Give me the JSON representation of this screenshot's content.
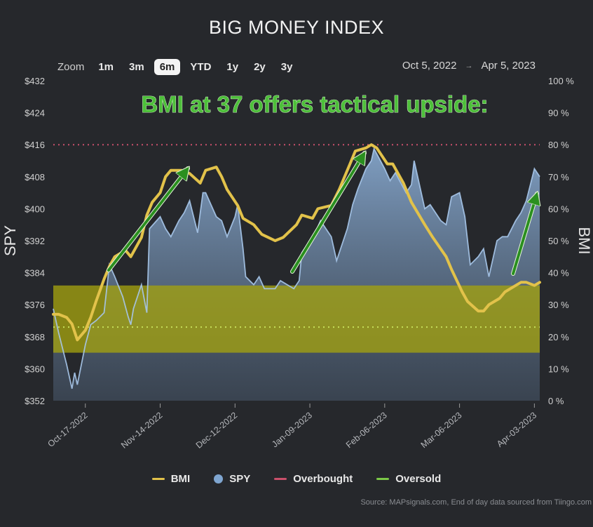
{
  "title": "BIG MONEY INDEX",
  "zoom": {
    "label": "Zoom",
    "buttons": [
      "1m",
      "3m",
      "6m",
      "YTD",
      "1y",
      "2y",
      "3y"
    ],
    "active": "6m"
  },
  "range": {
    "from": "Oct 5, 2022",
    "arrow": "→",
    "to": "Apr 5, 2023"
  },
  "colors": {
    "background": "#26282c",
    "bmi": "#e2c24a",
    "spy": "#7fa6d1",
    "overbought": "#c9506b",
    "oversold": "#7bc847",
    "oversold_zone": "#a3a20f",
    "annotation": "#4dbf3a",
    "arrow": "#2a8f1f"
  },
  "annotation": "BMI at 37 offers tactical upside:",
  "legend": [
    "BMI",
    "SPY",
    "Overbought",
    "Oversold"
  ],
  "source": "Source: MAPsignals.com, End of day data sourced from Tiingo.com",
  "chart_data": {
    "type": "line",
    "x_tick_labels": [
      "Oct-17-2022",
      "Nov-14-2022",
      "Dec-12-2022",
      "Jan-09-2023",
      "Feb-06-2023",
      "Mar-06-2023",
      "Apr-03-2023"
    ],
    "y_left": {
      "label": "SPY",
      "ticks": [
        "$432",
        "$424",
        "$416",
        "$408",
        "$400",
        "$392",
        "$384",
        "$376",
        "$368",
        "$360",
        "$352"
      ],
      "range": [
        352,
        432
      ]
    },
    "y_right": {
      "label": "BMI",
      "ticks": [
        "100 %",
        "90 %",
        "80 %",
        "70 %",
        "60 %",
        "50 %",
        "40 %",
        "30 %",
        "20 %",
        "10 %",
        "0 %"
      ],
      "range": [
        0,
        100
      ]
    },
    "overbought_level": 80,
    "oversold_level": 23,
    "oversold_zone": [
      15,
      36
    ],
    "x_range": [
      "2022-10-05",
      "2023-04-05"
    ],
    "series": [
      {
        "name": "SPY",
        "x": [
          "2022-10-05",
          "2022-10-07",
          "2022-10-10",
          "2022-10-12",
          "2022-10-13",
          "2022-10-14",
          "2022-10-17",
          "2022-10-19",
          "2022-10-21",
          "2022-10-24",
          "2022-10-26",
          "2022-10-28",
          "2022-10-31",
          "2022-11-02",
          "2022-11-03",
          "2022-11-04",
          "2022-11-07",
          "2022-11-09",
          "2022-11-10",
          "2022-11-14",
          "2022-11-16",
          "2022-11-18",
          "2022-11-21",
          "2022-11-23",
          "2022-11-25",
          "2022-11-28",
          "2022-11-30",
          "2022-12-01",
          "2022-12-05",
          "2022-12-07",
          "2022-12-09",
          "2022-12-12",
          "2022-12-13",
          "2022-12-15",
          "2022-12-16",
          "2022-12-19",
          "2022-12-21",
          "2022-12-23",
          "2022-12-27",
          "2022-12-29",
          "2023-01-03",
          "2023-01-05",
          "2023-01-06",
          "2023-01-09",
          "2023-01-11",
          "2023-01-13",
          "2023-01-17",
          "2023-01-19",
          "2023-01-23",
          "2023-01-25",
          "2023-01-27",
          "2023-01-30",
          "2023-02-01",
          "2023-02-02",
          "2023-02-06",
          "2023-02-08",
          "2023-02-10",
          "2023-02-14",
          "2023-02-16",
          "2023-02-17",
          "2023-02-21",
          "2023-02-23",
          "2023-02-27",
          "2023-03-01",
          "2023-03-03",
          "2023-03-06",
          "2023-03-08",
          "2023-03-10",
          "2023-03-13",
          "2023-03-15",
          "2023-03-17",
          "2023-03-20",
          "2023-03-22",
          "2023-03-24",
          "2023-03-27",
          "2023-03-29",
          "2023-03-31",
          "2023-04-03",
          "2023-04-05"
        ],
        "y": [
          375,
          369,
          361,
          355,
          359,
          356,
          366,
          371,
          372,
          374,
          386,
          383,
          378,
          373,
          371,
          375,
          381,
          374,
          395,
          398,
          395,
          393,
          397,
          399,
          402,
          394,
          404,
          404,
          398,
          397,
          393,
          398,
          401,
          390,
          383,
          381,
          383,
          380,
          380,
          382,
          380,
          382,
          389,
          392,
          394,
          397,
          393,
          387,
          395,
          401,
          405,
          410,
          412,
          415,
          410,
          407,
          409,
          404,
          406,
          412,
          400,
          401,
          397,
          396,
          403,
          404,
          398,
          386,
          388,
          390,
          383,
          392,
          393,
          393,
          397,
          399,
          402,
          410,
          408
        ]
      },
      {
        "name": "BMI",
        "x": [
          "2022-10-05",
          "2022-10-07",
          "2022-10-10",
          "2022-10-12",
          "2022-10-14",
          "2022-10-17",
          "2022-10-19",
          "2022-10-21",
          "2022-10-24",
          "2022-10-26",
          "2022-10-28",
          "2022-11-01",
          "2022-11-03",
          "2022-11-07",
          "2022-11-09",
          "2022-11-11",
          "2022-11-14",
          "2022-11-16",
          "2022-11-18",
          "2022-11-22",
          "2022-11-25",
          "2022-11-29",
          "2022-12-01",
          "2022-12-05",
          "2022-12-07",
          "2022-12-09",
          "2022-12-13",
          "2022-12-15",
          "2022-12-19",
          "2022-12-22",
          "2022-12-27",
          "2022-12-30",
          "2023-01-04",
          "2023-01-06",
          "2023-01-10",
          "2023-01-12",
          "2023-01-17",
          "2023-01-20",
          "2023-01-24",
          "2023-01-26",
          "2023-01-30",
          "2023-02-01",
          "2023-02-03",
          "2023-02-07",
          "2023-02-09",
          "2023-02-13",
          "2023-02-16",
          "2023-02-21",
          "2023-02-24",
          "2023-03-01",
          "2023-03-03",
          "2023-03-07",
          "2023-03-09",
          "2023-03-13",
          "2023-03-15",
          "2023-03-17",
          "2023-03-21",
          "2023-03-23",
          "2023-03-27",
          "2023-03-29",
          "2023-03-31",
          "2023-04-03",
          "2023-04-05"
        ],
        "y": [
          27,
          27,
          26,
          24,
          19,
          22,
          26,
          31,
          38,
          42,
          45,
          47,
          45,
          51,
          58,
          62,
          65,
          70,
          72,
          72,
          71,
          68,
          72,
          73,
          70,
          66,
          61,
          57,
          55,
          52,
          50,
          51,
          55,
          58,
          57,
          60,
          61,
          66,
          74,
          78,
          79,
          80,
          79,
          74,
          74,
          68,
          62,
          55,
          51,
          45,
          41,
          34,
          31,
          28,
          28,
          30,
          32,
          34,
          36,
          37,
          37,
          36,
          37
        ]
      }
    ]
  }
}
